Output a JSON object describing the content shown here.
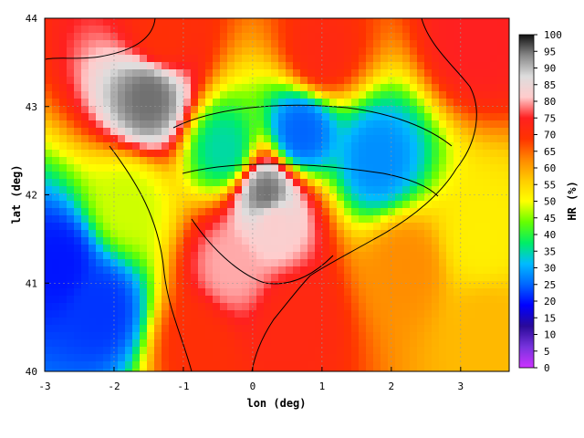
{
  "chart_data": {
    "type": "heatmap",
    "title": "",
    "xlabel": "lon (deg)",
    "ylabel": "lat (deg)",
    "xlim": [
      -3,
      3.7
    ],
    "ylim": [
      40,
      44
    ],
    "x_ticks": [
      "-3",
      "-2",
      "-1",
      "0",
      "1",
      "2",
      "3"
    ],
    "y_ticks": [
      "40",
      "41",
      "42",
      "43",
      "44"
    ],
    "grid": true,
    "colorbar": {
      "label": "HR (%)",
      "range": [
        0,
        100
      ],
      "ticks": [
        "0",
        "5",
        "10",
        "15",
        "20",
        "25",
        "30",
        "35",
        "40",
        "45",
        "50",
        "55",
        "60",
        "65",
        "70",
        "75",
        "80",
        "85",
        "90",
        "95",
        "100"
      ],
      "stops": [
        "#cc33ff",
        "#7733dd",
        "#2a0a99",
        "#0000ff",
        "#0066ff",
        "#00bbff",
        "#00ee66",
        "#66ff00",
        "#ffff00",
        "#ffcc00",
        "#ff8800",
        "#ff3300",
        "#ff2020",
        "#ffcccc",
        "#dddddd",
        "#888888",
        "#111111"
      ]
    },
    "field_summary": [
      {
        "lon": 0.7,
        "lat": 42.7,
        "value": 25
      },
      {
        "lon": 1.8,
        "lat": 42.4,
        "value": 28
      },
      {
        "lon": -0.4,
        "lat": 42.5,
        "value": 35
      },
      {
        "lon": -1.5,
        "lat": 43.1,
        "value": 95
      },
      {
        "lon": 0.2,
        "lat": 42.0,
        "value": 95
      },
      {
        "lon": 0.3,
        "lat": 41.7,
        "value": 82
      },
      {
        "lon": -0.3,
        "lat": 41.2,
        "value": 80
      },
      {
        "lon": 1.0,
        "lat": 43.6,
        "value": 72
      },
      {
        "lon": -1.3,
        "lat": 43.8,
        "value": 70
      },
      {
        "lon": 3.2,
        "lat": 43.8,
        "value": 75
      },
      {
        "lon": -2.8,
        "lat": 41.2,
        "value": 20
      },
      {
        "lon": -2.2,
        "lat": 40.7,
        "value": 22
      },
      {
        "lon": -1.8,
        "lat": 41.9,
        "value": 48
      },
      {
        "lon": -0.8,
        "lat": 40.3,
        "value": 70
      },
      {
        "lon": 0.6,
        "lat": 40.6,
        "value": 72
      },
      {
        "lon": 2.2,
        "lat": 41.2,
        "value": 62
      },
      {
        "lon": 3.3,
        "lat": 41.5,
        "value": 52
      },
      {
        "lon": 3.4,
        "lat": 40.5,
        "value": 58
      }
    ]
  }
}
